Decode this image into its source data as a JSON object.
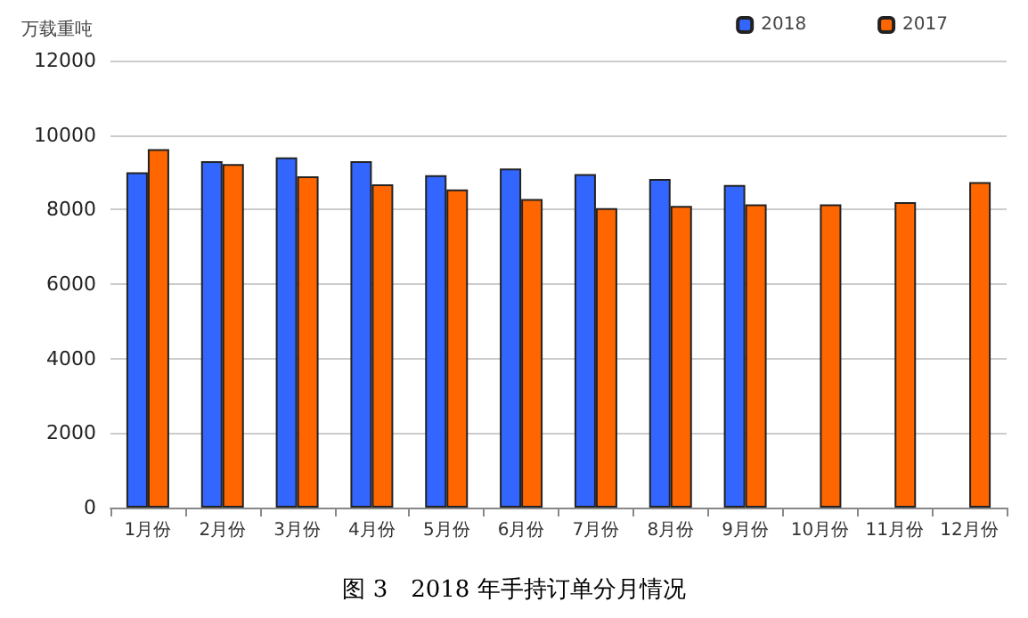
{
  "chart_data": {
    "type": "bar",
    "ylabel": "万载重吨",
    "categories": [
      "1月份",
      "2月份",
      "3月份",
      "4月份",
      "5月份",
      "6月份",
      "7月份",
      "8月份",
      "9月份",
      "10月份",
      "11月份",
      "12月份"
    ],
    "series": [
      {
        "name": "2018",
        "color": "#3366ff",
        "values": [
          9000,
          9300,
          9400,
          9300,
          8920,
          9100,
          8950,
          8820,
          8660,
          null,
          null,
          null
        ]
      },
      {
        "name": "2017",
        "color": "#ff6600",
        "values": [
          9620,
          9220,
          8890,
          8680,
          8540,
          8280,
          8040,
          8100,
          8140,
          8140,
          8200,
          8740
        ]
      }
    ],
    "ylim": [
      0,
      12000
    ],
    "yticks": [
      0,
      2000,
      4000,
      6000,
      8000,
      10000,
      12000
    ],
    "grid": "y",
    "legend": "top right",
    "annotations": [
      "图 3　2018 年手持订单分月情况"
    ]
  }
}
